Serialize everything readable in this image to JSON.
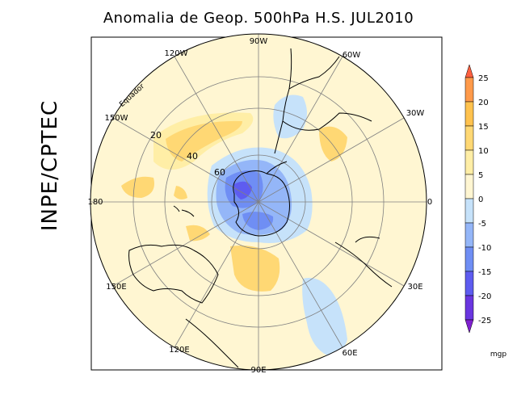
{
  "title": "Anomalia de Geop. 500hPa H.S. JUL2010",
  "side_label": "INPE/CPTEC",
  "equator_label": "Equador",
  "lon_labels": [
    "90W",
    "60W",
    "30W",
    "0",
    "30E",
    "60E",
    "90E",
    "120E",
    "150E",
    "180",
    "150W",
    "120W"
  ],
  "lat_labels": [
    "20",
    "40",
    "60"
  ],
  "colorbar": {
    "ticks": [
      25,
      20,
      15,
      10,
      5,
      0,
      -5,
      -10,
      -15,
      -20,
      -25
    ],
    "unit": "mgp",
    "colors": [
      "#ff6040",
      "#ff9a4a",
      "#ffc24e",
      "#ffd874",
      "#ffeea6",
      "#fff6d2",
      "#c6e2fa",
      "#94b6f8",
      "#6f8ef4",
      "#5e5cf0",
      "#6a36e0",
      "#8020d0"
    ]
  },
  "colors": {
    "background_zero": "#fff6d2",
    "positive": "#ffd874",
    "negative": "#94b6f8",
    "strong_negative": "#5e5cf0"
  }
}
